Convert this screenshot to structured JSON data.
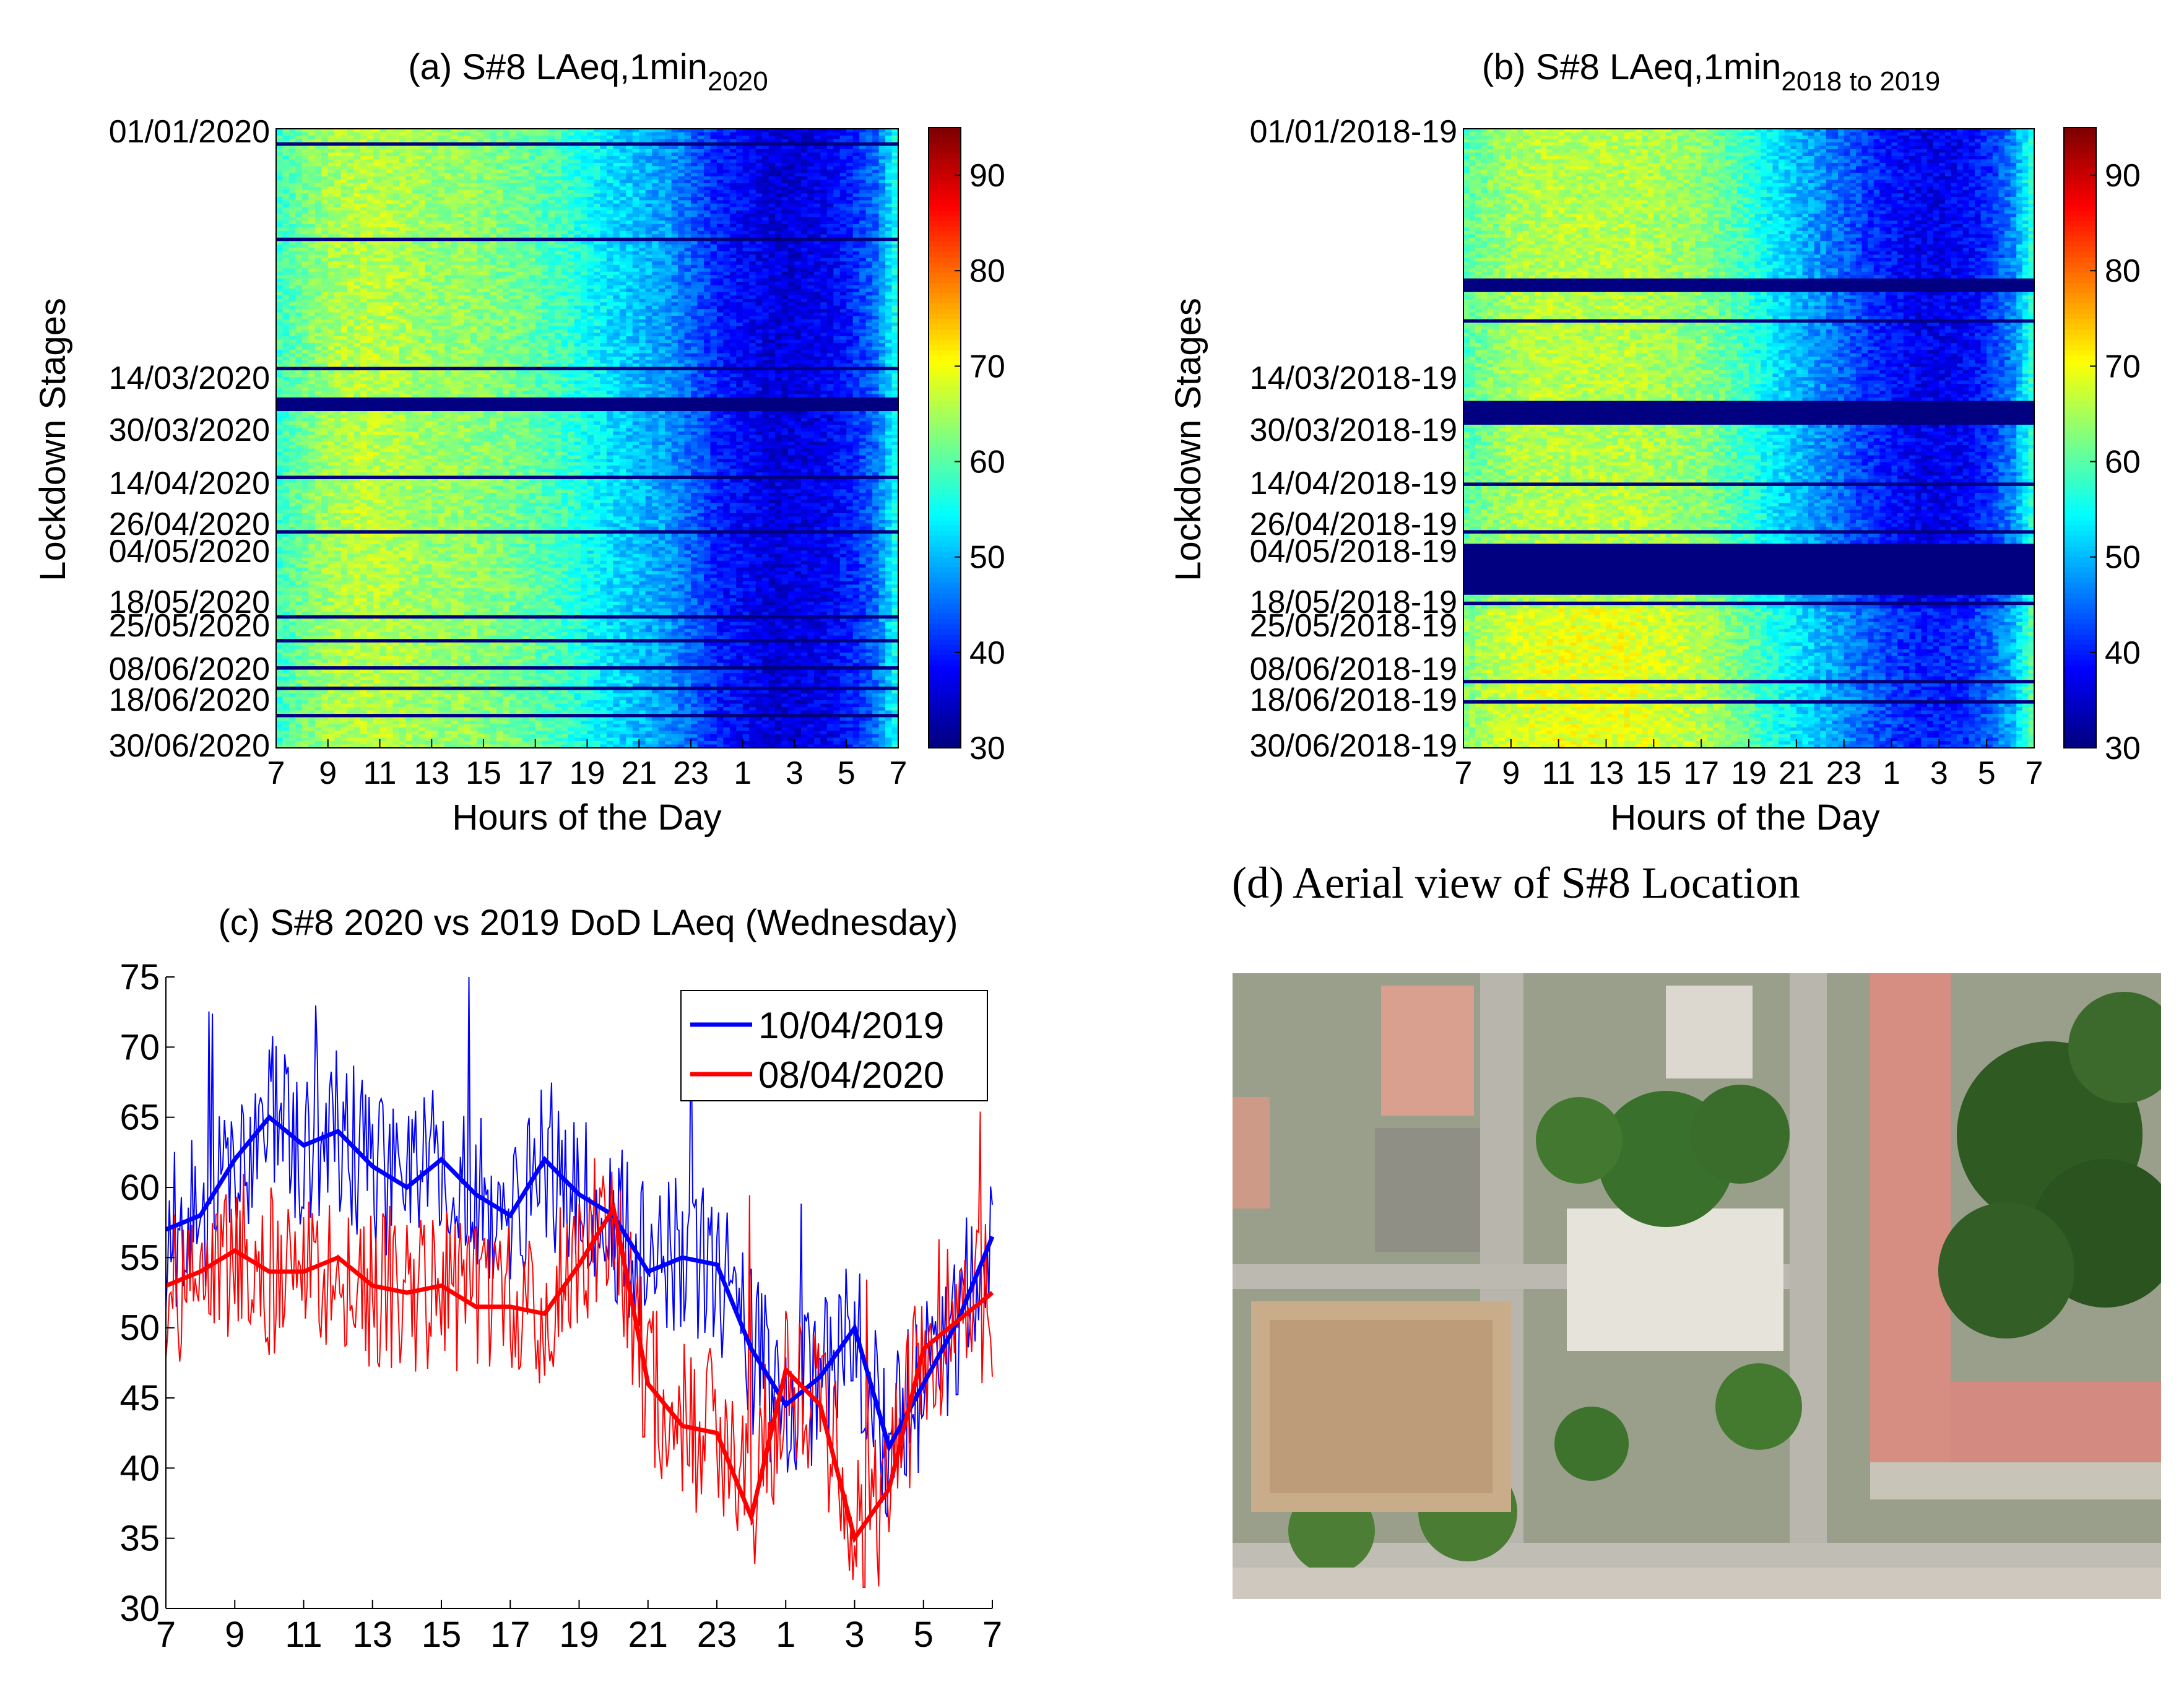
{
  "figure": {
    "panel_a": {
      "title_main": "(a) S#8 LAeq,1min",
      "title_sub": "2020",
      "ylabel": "Lockdown Stages",
      "xlabel": "Hours of the Day",
      "date_labels": [
        "01/01/2020",
        "14/03/2020",
        "30/03/2020",
        "14/04/2020",
        "26/04/2020",
        "04/05/2020",
        "18/05/2020",
        "25/05/2020",
        "08/06/2020",
        "18/06/2020",
        "30/06/2020"
      ]
    },
    "panel_b": {
      "title_main": "(b) S#8 LAeq,1min",
      "title_sub": "2018 to 2019",
      "ylabel": "Lockdown Stages",
      "xlabel": "Hours of the Day",
      "date_labels": [
        "01/01/2018-19",
        "14/03/2018-19",
        "30/03/2018-19",
        "14/04/2018-19",
        "26/04/2018-19",
        "04/05/2018-19",
        "18/05/2018-19",
        "25/05/2018-19",
        "08/06/2018-19",
        "18/06/2018-19",
        "30/06/2018-19"
      ]
    },
    "panel_c": {
      "title": "(c) S#8 2020 vs 2019 DoD LAeq (Wednesday)"
    },
    "panel_d": {
      "title": "(d) Aerial view of S#8 Location"
    },
    "colorbar": {
      "ticks": [
        "30",
        "40",
        "50",
        "60",
        "70",
        "80",
        "90"
      ],
      "range": [
        30,
        95
      ],
      "colormap": "jet"
    }
  },
  "chart_data": [
    {
      "type": "heatmap",
      "title": "(a) S#8 LAeq,1min 2020",
      "xlabel": "Hours of the Day",
      "ylabel": "Lockdown Stages",
      "x_ticks": [
        "7",
        "9",
        "11",
        "13",
        "15",
        "17",
        "19",
        "21",
        "23",
        "1",
        "3",
        "5",
        "7"
      ],
      "y_ticks": [
        "01/01/2020",
        "14/03/2020",
        "30/03/2020",
        "14/04/2020",
        "26/04/2020",
        "04/05/2020",
        "18/05/2020",
        "25/05/2020",
        "08/06/2020",
        "18/06/2020",
        "30/06/2020"
      ],
      "colorbar_range": [
        30,
        95
      ],
      "colormap": "jet",
      "hourly_profile_dB": [
        58,
        62,
        65,
        66,
        66,
        65,
        64,
        64,
        63,
        62,
        60,
        58,
        55,
        52,
        50,
        48,
        44,
        40,
        38,
        36,
        36,
        37,
        40,
        45
      ]
    },
    {
      "type": "heatmap",
      "title": "(b) S#8 LAeq,1min 2018 to 2019",
      "xlabel": "Hours of the Day",
      "ylabel": "Lockdown Stages",
      "x_ticks": [
        "7",
        "9",
        "11",
        "13",
        "15",
        "17",
        "19",
        "21",
        "23",
        "1",
        "3",
        "5",
        "7"
      ],
      "y_ticks": [
        "01/01/2018-19",
        "14/03/2018-19",
        "30/03/2018-19",
        "14/04/2018-19",
        "26/04/2018-19",
        "04/05/2018-19",
        "18/05/2018-19",
        "25/05/2018-19",
        "08/06/2018-19",
        "18/06/2018-19",
        "30/06/2018-19"
      ],
      "colorbar_range": [
        30,
        95
      ],
      "colormap": "jet",
      "hourly_profile_dB": [
        60,
        63,
        65,
        66,
        66,
        66,
        66,
        66,
        65,
        64,
        63,
        60,
        57,
        53,
        50,
        47,
        44,
        41,
        39,
        37,
        37,
        38,
        41,
        47
      ]
    },
    {
      "type": "line",
      "title": "(c) S#8 2020 vs 2019 DoD LAeq (Wednesday)",
      "x_ticks": [
        "7",
        "9",
        "11",
        "13",
        "15",
        "17",
        "19",
        "21",
        "23",
        "1",
        "3",
        "5",
        "7"
      ],
      "y_ticks": [
        "30",
        "35",
        "40",
        "45",
        "50",
        "55",
        "60",
        "65",
        "70",
        "75"
      ],
      "ylim": [
        30,
        75
      ],
      "x_hours_since_7": [
        0,
        1,
        2,
        3,
        4,
        5,
        6,
        7,
        8,
        9,
        10,
        11,
        12,
        13,
        14,
        15,
        16,
        17,
        18,
        19,
        20,
        21,
        22,
        23,
        24
      ],
      "series": [
        {
          "name": "10/04/2019",
          "color": "#0000ff",
          "hourly_values": [
            57,
            58,
            62,
            65,
            63,
            64,
            61.5,
            60,
            62,
            59.5,
            58,
            62,
            59.5,
            58,
            54,
            55,
            54.5,
            48.5,
            44.5,
            46.5,
            50,
            41.5,
            46,
            50.5,
            56.5
          ]
        },
        {
          "name": "08/04/2020",
          "color": "#ff0000",
          "hourly_values": [
            53,
            54,
            55.5,
            54,
            54,
            55,
            53,
            52.5,
            53,
            51.5,
            51.5,
            51,
            54.5,
            58.5,
            46,
            43,
            42.5,
            36.5,
            47,
            44.5,
            35,
            38.5,
            48.5,
            50.5,
            52.5
          ]
        }
      ]
    }
  ]
}
